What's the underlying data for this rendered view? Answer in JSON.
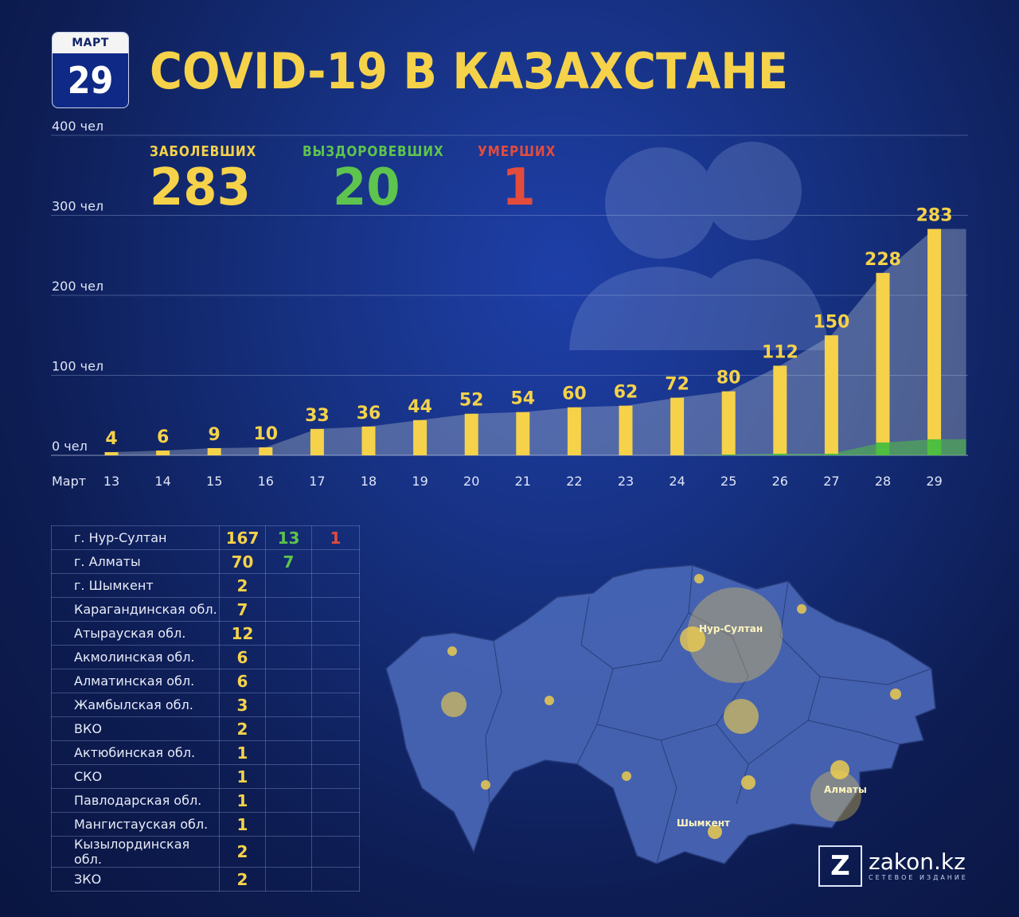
{
  "header": {
    "month": "МАРТ",
    "day": "29",
    "title": "COVID-19 В КАЗАХСТАНЕ"
  },
  "stats": {
    "cases": {
      "label": "ЗАБОЛЕВШИХ",
      "value": "283",
      "color": "#f5d24a"
    },
    "recovered": {
      "label": "ВЫЗДОРОВЕВШИХ",
      "value": "20",
      "color": "#5ec44e"
    },
    "deaths": {
      "label": "УМЕРШИХ",
      "value": "1",
      "color": "#e34c3c"
    }
  },
  "chart_data": {
    "type": "bar",
    "x_prefix": "Март",
    "categories": [
      "13",
      "14",
      "15",
      "16",
      "17",
      "18",
      "19",
      "20",
      "21",
      "22",
      "23",
      "24",
      "25",
      "26",
      "27",
      "28",
      "29"
    ],
    "values": [
      4,
      6,
      9,
      10,
      33,
      36,
      44,
      52,
      54,
      60,
      62,
      72,
      80,
      112,
      150,
      228,
      283
    ],
    "recovered": [
      0,
      0,
      0,
      0,
      0,
      0,
      0,
      0,
      0,
      0,
      0,
      0,
      1,
      2,
      2,
      16,
      20
    ],
    "y_ticks": [
      "0 чел",
      "100 чел",
      "200 чел",
      "300 чел",
      "400 чел"
    ],
    "ylim": [
      0,
      400
    ],
    "grid": true,
    "bar_color": "#f5d24a",
    "recovered_color": "#4fbf3f"
  },
  "regions": [
    {
      "name": "г. Нур-Султан",
      "cases": "167",
      "recovered": "13",
      "deaths": "1"
    },
    {
      "name": "г. Алматы",
      "cases": "70",
      "recovered": "7",
      "deaths": ""
    },
    {
      "name": "г. Шымкент",
      "cases": "2",
      "recovered": "",
      "deaths": ""
    },
    {
      "name": "Карагандинская обл.",
      "cases": "7",
      "recovered": "",
      "deaths": ""
    },
    {
      "name": "Атырауская обл.",
      "cases": "12",
      "recovered": "",
      "deaths": ""
    },
    {
      "name": "Акмолинская обл.",
      "cases": "6",
      "recovered": "",
      "deaths": ""
    },
    {
      "name": "Алматинская обл.",
      "cases": "6",
      "recovered": "",
      "deaths": ""
    },
    {
      "name": "Жамбылская обл.",
      "cases": "3",
      "recovered": "",
      "deaths": ""
    },
    {
      "name": "ВКО",
      "cases": "2",
      "recovered": "",
      "deaths": ""
    },
    {
      "name": "Актюбинская обл.",
      "cases": "1",
      "recovered": "",
      "deaths": ""
    },
    {
      "name": "СКО",
      "cases": "1",
      "recovered": "",
      "deaths": ""
    },
    {
      "name": "Павлодарская обл.",
      "cases": "1",
      "recovered": "",
      "deaths": ""
    },
    {
      "name": "Мангистауская обл.",
      "cases": "1",
      "recovered": "",
      "deaths": ""
    },
    {
      "name": "Кызылординская обл.",
      "cases": "2",
      "recovered": "",
      "deaths": ""
    },
    {
      "name": "ЗКО",
      "cases": "2",
      "recovered": "",
      "deaths": ""
    }
  ],
  "map_labels": {
    "nur_sultan": "Нур-Султан",
    "almaty": "Алматы",
    "shymkent": "Шымкент"
  },
  "brand": {
    "name": "zakon.kz",
    "tagline": "СЕТЕВОЕ ИЗДАНИЕ",
    "logo_letter": "Z"
  }
}
